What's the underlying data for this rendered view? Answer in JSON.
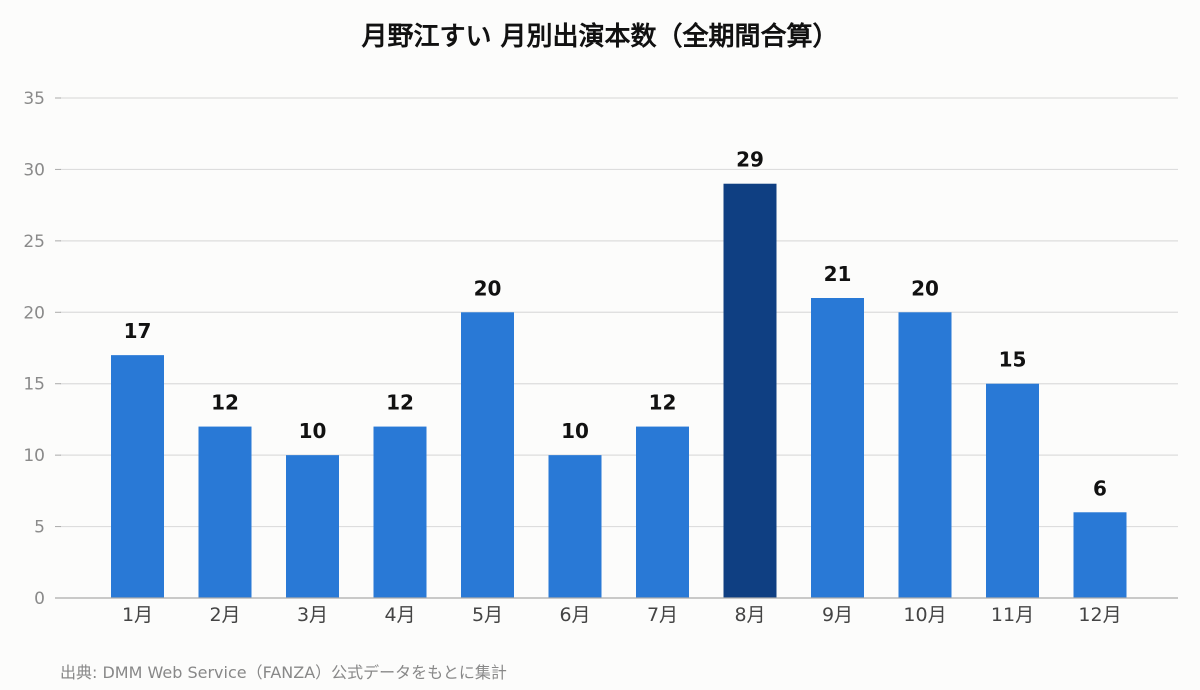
{
  "chart_data": {
    "type": "bar",
    "title": "月野江すい 月別出演本数（全期間合算）",
    "categories": [
      "1月",
      "2月",
      "3月",
      "4月",
      "5月",
      "6月",
      "7月",
      "8月",
      "9月",
      "10月",
      "11月",
      "12月"
    ],
    "values": [
      17,
      12,
      10,
      12,
      20,
      10,
      12,
      29,
      21,
      20,
      15,
      6
    ],
    "ylim": [
      0,
      35
    ],
    "yticks": [
      0,
      5,
      10,
      15,
      20,
      25,
      30,
      35
    ],
    "xlabel": "",
    "ylabel": "",
    "grid": true,
    "highlight_index": 7,
    "colors": {
      "bar": "#2979d6",
      "highlight": "#0f3f82",
      "grid": "#dddddd",
      "axis": "#aaaaaa"
    }
  },
  "source": "出典: DMM Web Service（FANZA）公式データをもとに集計"
}
